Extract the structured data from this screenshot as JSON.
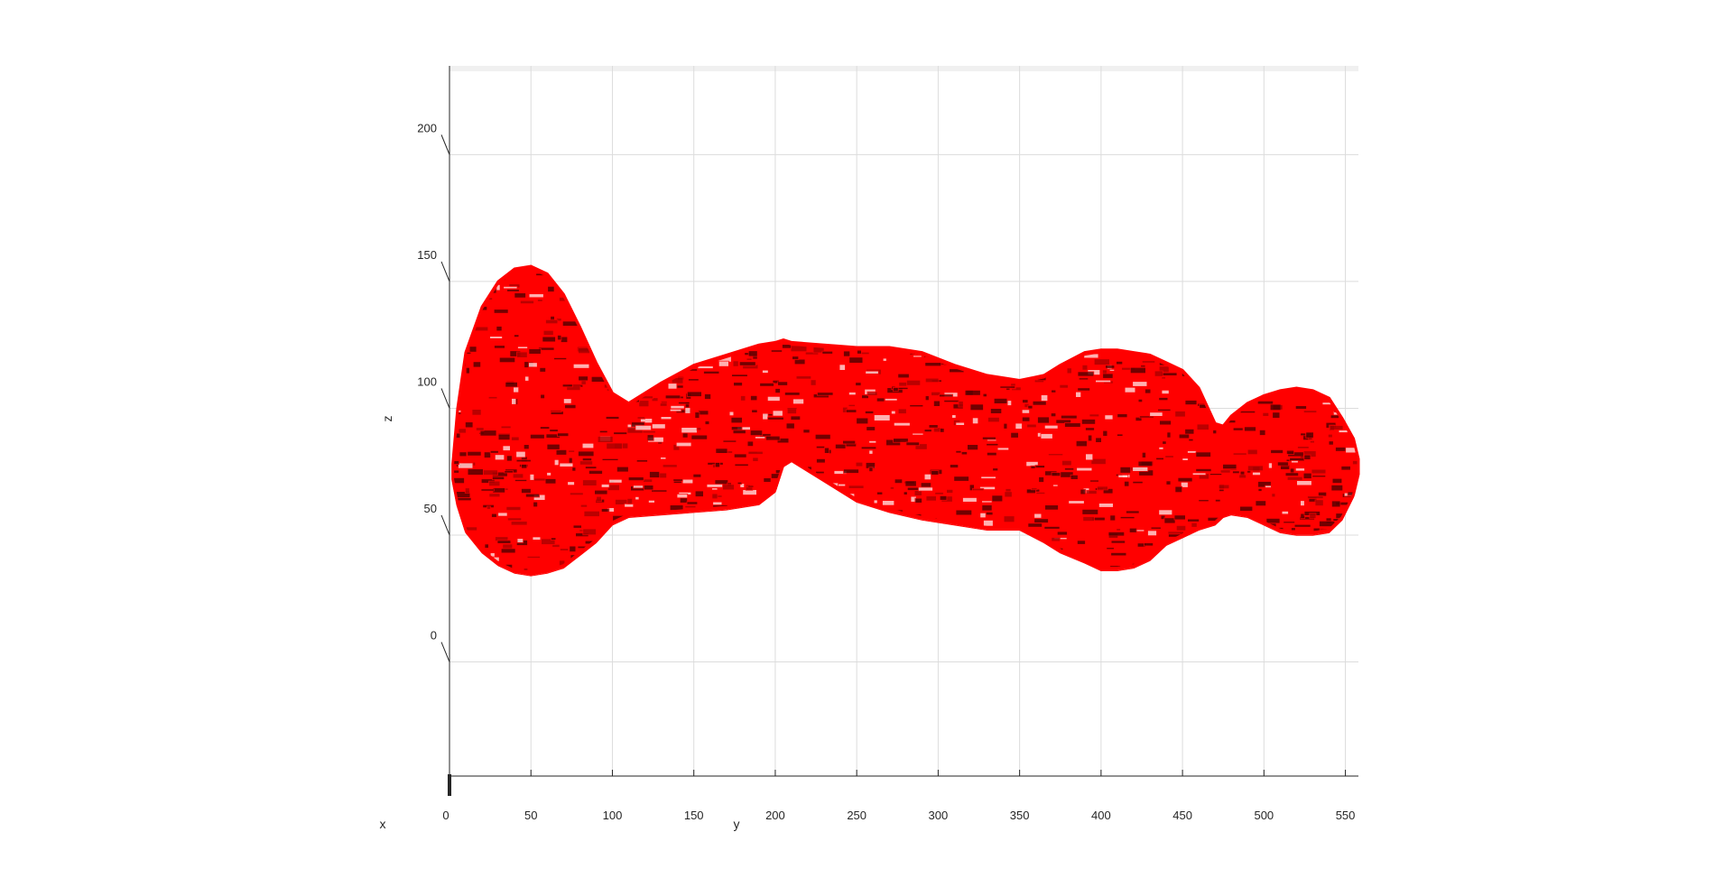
{
  "chart_data": {
    "type": "surface3d",
    "view": "side (y-z plane)",
    "xlabel": "x",
    "ylabel": "y",
    "zlabel": "z",
    "y_ticks": [
      0,
      50,
      100,
      150,
      200,
      250,
      300,
      350,
      400,
      450,
      500,
      550
    ],
    "z_ticks": [
      0,
      50,
      100,
      150,
      200
    ],
    "ylim": [
      0,
      558
    ],
    "zlim": [
      -45,
      235
    ],
    "grid": true,
    "surface_color": "#ff0000",
    "surface_shadow_color": "#5a0000",
    "surface_highlight_color": "#ffd0d0",
    "surface_profile": {
      "y": [
        2,
        5,
        10,
        20,
        30,
        40,
        50,
        60,
        70,
        80,
        90,
        100,
        110,
        130,
        150,
        170,
        190,
        200,
        205,
        210,
        230,
        250,
        270,
        290,
        310,
        330,
        350,
        365,
        375,
        390,
        400,
        410,
        420,
        430,
        440,
        450,
        460,
        470,
        475,
        480,
        490,
        500,
        510,
        520,
        530,
        540,
        548,
        555,
        558
      ],
      "z_top": [
        78,
        100,
        122,
        140,
        150,
        155,
        156,
        153,
        145,
        132,
        118,
        106,
        102,
        110,
        117,
        121,
        125,
        126,
        127,
        126,
        125,
        124,
        124,
        122,
        117,
        113,
        111,
        113,
        117,
        122,
        123,
        123,
        122,
        121,
        118,
        115,
        108,
        94,
        93,
        97,
        102,
        105,
        107,
        108,
        107,
        104,
        96,
        88,
        80
      ],
      "z_bottom": [
        72,
        62,
        52,
        44,
        39,
        36,
        35,
        36,
        38,
        43,
        48,
        55,
        58,
        59,
        60,
        61,
        63,
        68,
        78,
        80,
        72,
        64,
        60,
        57,
        55,
        53,
        53,
        48,
        44,
        40,
        37,
        37,
        38,
        41,
        47,
        50,
        53,
        55,
        58,
        59,
        58,
        55,
        52,
        51,
        51,
        52,
        57,
        66,
        74
      ]
    }
  }
}
